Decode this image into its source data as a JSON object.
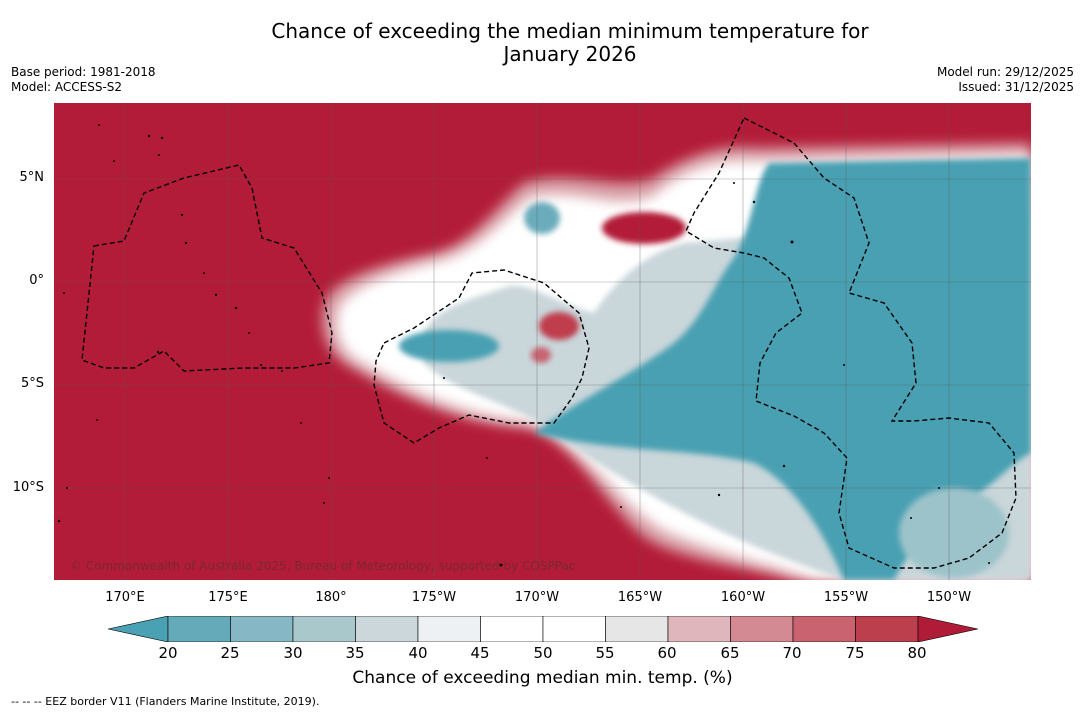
{
  "title_line1": "Chance of exceeding the median minimum temperature for",
  "title_line2": "January 2026",
  "meta_left": [
    "Base period: 1981-2018",
    "Model: ACCESS-S2"
  ],
  "meta_right": [
    "Model run: 29/12/2025",
    "Issued: 31/12/2025"
  ],
  "lat_labels": [
    "5°N",
    "0°",
    "5°S",
    "10°S"
  ],
  "lon_labels": [
    "170°E",
    "175°E",
    "180°",
    "175°W",
    "170°W",
    "165°W",
    "160°W",
    "155°W",
    "150°W"
  ],
  "copyright": "© Commonwealth of Australia 2025, Bureau of Meteorology, supported by COSPPac",
  "colorbar": {
    "ticks": [
      "20",
      "25",
      "30",
      "35",
      "40",
      "45",
      "50",
      "55",
      "60",
      "65",
      "70",
      "75",
      "80"
    ],
    "colors": [
      "#4aa1b3",
      "#65aab8",
      "#85b8c4",
      "#a9c8cc",
      "#cbd7db",
      "#edf1f3",
      "#ffffff",
      "#ffffff",
      "#e6e6e6",
      "#dfb6bb",
      "#d48a93",
      "#c8636f",
      "#bc3f4e",
      "#b01c38"
    ],
    "label": "Chance of exceeding median min. temp. (%)"
  },
  "legend_note": "--  --  -- EEZ border V11 (Flanders Marine Institute, 2019).",
  "colors": {
    "warm": "#b31c38",
    "cool": "#48a0b2",
    "neutral": "#ffffff"
  }
}
